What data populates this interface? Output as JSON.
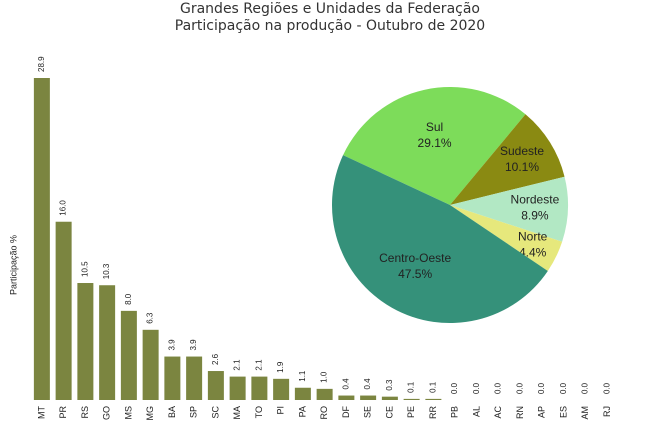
{
  "chart_data": [
    {
      "type": "bar",
      "title": "Grandes Regiões e Unidades da Federação",
      "subtitle": "Participação na produção - Outubro de 2020",
      "y_label": "Participação %",
      "color": "#7b8540",
      "categories": [
        "MT",
        "PR",
        "RS",
        "GO",
        "MS",
        "MG",
        "BA",
        "SP",
        "SC",
        "MA",
        "TO",
        "PI",
        "PA",
        "RO",
        "DF",
        "SE",
        "CE",
        "PE",
        "RR",
        "PB",
        "AL",
        "AC",
        "RN",
        "AP",
        "ES",
        "AM",
        "RJ"
      ],
      "values": [
        28.9,
        16.0,
        10.5,
        10.3,
        8.0,
        6.3,
        3.9,
        3.9,
        2.6,
        2.1,
        2.1,
        1.9,
        1.1,
        1.0,
        0.4,
        0.4,
        0.3,
        0.1,
        0.1,
        0.0,
        0.0,
        0.0,
        0.0,
        0.0,
        0.0,
        0.0,
        0.0
      ],
      "value_labels": [
        "28.9",
        "16.0",
        "10.5",
        "10.3",
        "8.0",
        "6.3",
        "3.9",
        "3.9",
        "2.6",
        "2.1",
        "2.1",
        "1.9",
        "1.1",
        "1.0",
        "0.4",
        "0.4",
        "0.3",
        "0.1",
        "0.1",
        "0.0",
        "0.0",
        "0.0",
        "0.0",
        "0.0",
        "0.0",
        "0.0",
        "0.0"
      ]
    },
    {
      "type": "pie",
      "categories": [
        "Sul",
        "Sudeste",
        "Nordeste",
        "Norte",
        "Centro-Oeste"
      ],
      "values": [
        29.1,
        10.1,
        8.9,
        4.4,
        47.5
      ],
      "value_labels": [
        "29.1%",
        "10.1%",
        "8.9%",
        "4.4%",
        "47.5%"
      ],
      "colors": [
        "#7ddc5a",
        "#8a8a12",
        "#b2e8c4",
        "#e6e87c",
        "#35917a"
      ]
    }
  ]
}
